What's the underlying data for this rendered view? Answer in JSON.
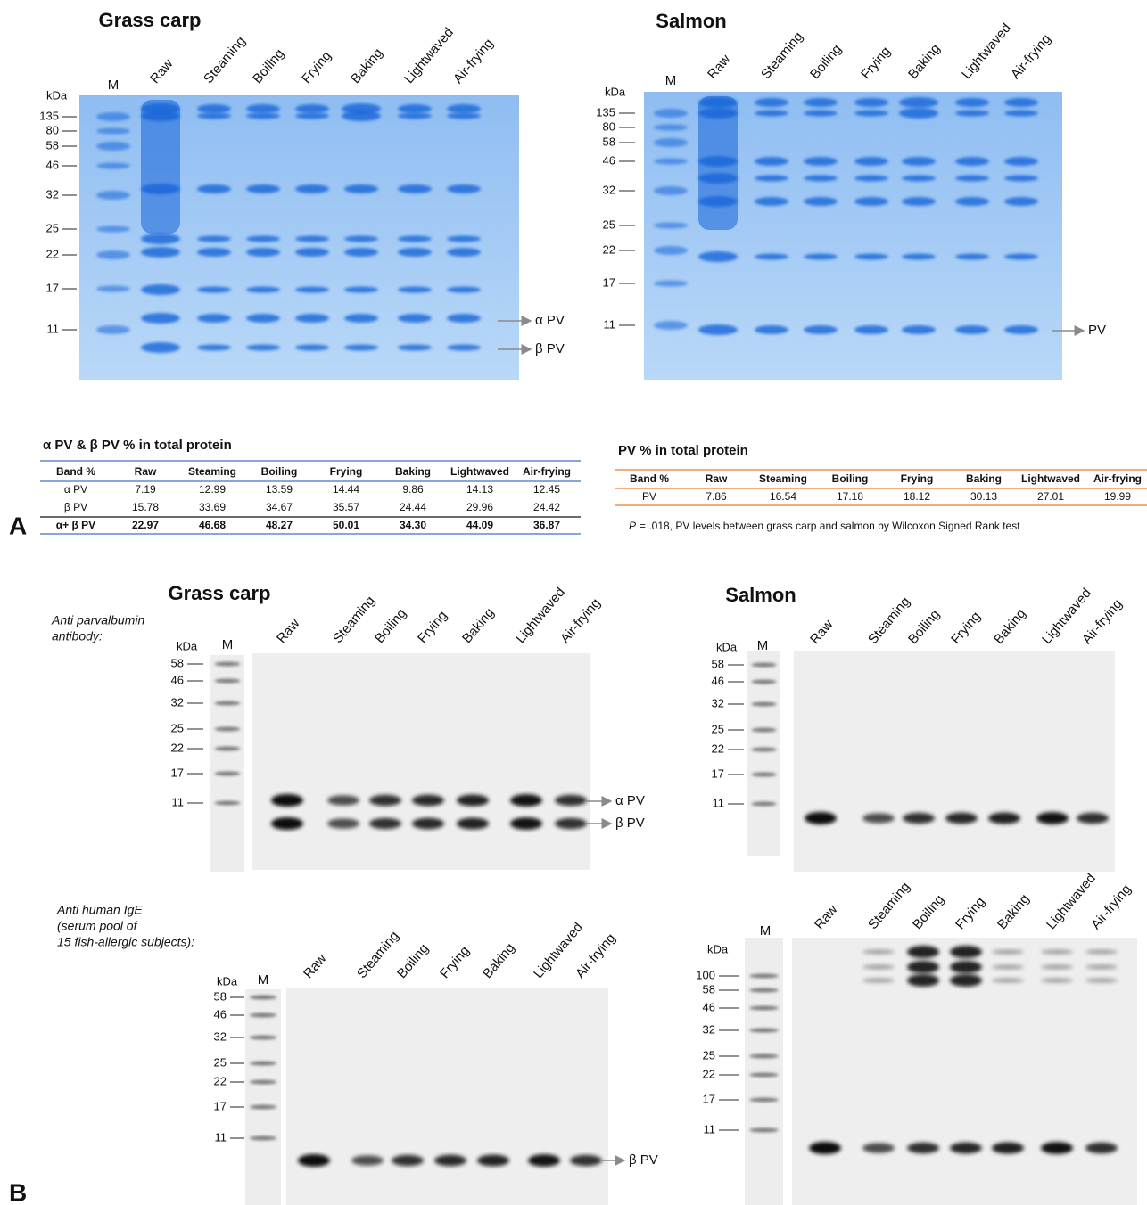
{
  "panel_a": {
    "letter": "A",
    "gels": [
      {
        "title": "Grass carp",
        "lanes": [
          "M",
          "Raw",
          "Steaming",
          "Boiling",
          "Frying",
          "Baking",
          "Lightwaved",
          "Air-frying"
        ],
        "unit": "kDa",
        "markers": [
          "135",
          "80",
          "58",
          "46",
          "32",
          "25",
          "22",
          "17",
          "11"
        ],
        "arrows": [
          "α PV",
          "β PV"
        ]
      },
      {
        "title": "Salmon",
        "lanes": [
          "M",
          "Raw",
          "Steaming",
          "Boiling",
          "Frying",
          "Baking",
          "Lightwaved",
          "Air-frying"
        ],
        "unit": "kDa",
        "markers": [
          "135",
          "80",
          "58",
          "46",
          "32",
          "25",
          "22",
          "17",
          "11"
        ],
        "arrows": [
          "PV"
        ]
      }
    ],
    "tables": [
      {
        "title": "α PV & β PV % in total protein",
        "header": [
          "Band %",
          "Raw",
          "Steaming",
          "Boiling",
          "Frying",
          "Baking",
          "Lightwaved",
          "Air-frying"
        ],
        "rows": [
          [
            "α PV",
            "7.19",
            "12.99",
            "13.59",
            "14.44",
            "9.86",
            "14.13",
            "12.45"
          ],
          [
            "β PV",
            "15.78",
            "33.69",
            "34.67",
            "35.57",
            "24.44",
            "29.96",
            "24.42"
          ],
          [
            "α+ β PV",
            "22.97",
            "46.68",
            "48.27",
            "50.01",
            "34.30",
            "44.09",
            "36.87"
          ]
        ]
      },
      {
        "title": "PV % in total protein",
        "header": [
          "Band %",
          "Raw",
          "Steaming",
          "Boiling",
          "Frying",
          "Baking",
          "Lightwaved",
          "Air-frying"
        ],
        "rows": [
          [
            "PV",
            "7.86",
            "16.54",
            "17.18",
            "18.12",
            "30.13",
            "27.01",
            "19.99"
          ]
        ]
      }
    ],
    "note": {
      "p": "P",
      "text": "= .018, PV levels between grass carp and salmon by Wilcoxon Signed Rank test"
    }
  },
  "panel_b": {
    "letter": "B",
    "antibodies": [
      {
        "lines": [
          "Anti parvalbumin",
          "antibody:"
        ]
      },
      {
        "lines": [
          "Anti human IgE",
          "(serum pool of",
          "15 fish-allergic subjects):"
        ]
      }
    ],
    "gels": [
      {
        "title": "Grass carp",
        "lanes": [
          "M",
          "Raw",
          "Steaming",
          "Boiling",
          "Frying",
          "Baking",
          "Lightwaved",
          "Air-frying"
        ],
        "unit": "kDa",
        "markers": [
          "58",
          "46",
          "32",
          "25",
          "22",
          "17",
          "11"
        ],
        "arrows": [
          "α PV",
          "β PV"
        ]
      },
      {
        "title": "Salmon",
        "lanes": [
          "M",
          "Raw",
          "Steaming",
          "Boiling",
          "Frying",
          "Baking",
          "Lightwaved",
          "Air-frying"
        ],
        "unit": "kDa",
        "markers": [
          "58",
          "46",
          "32",
          "25",
          "22",
          "17",
          "11"
        ],
        "arrows": []
      },
      {
        "lanes": [
          "M",
          "Raw",
          "Steaming",
          "Boiling",
          "Frying",
          "Baking",
          "Lightwaved",
          "Air-frying"
        ],
        "unit": "kDa",
        "markers": [
          "58",
          "46",
          "32",
          "25",
          "22",
          "17",
          "11"
        ],
        "arrows": [
          "β PV"
        ]
      },
      {
        "lanes": [
          "M",
          "Raw",
          "Steaming",
          "Boiling",
          "Frying",
          "Baking",
          "Lightwaved",
          "Air-frying"
        ],
        "unit": "kDa",
        "markers": [
          "100",
          "58",
          "46",
          "32",
          "25",
          "22",
          "17",
          "11"
        ],
        "arrows": []
      }
    ]
  }
}
